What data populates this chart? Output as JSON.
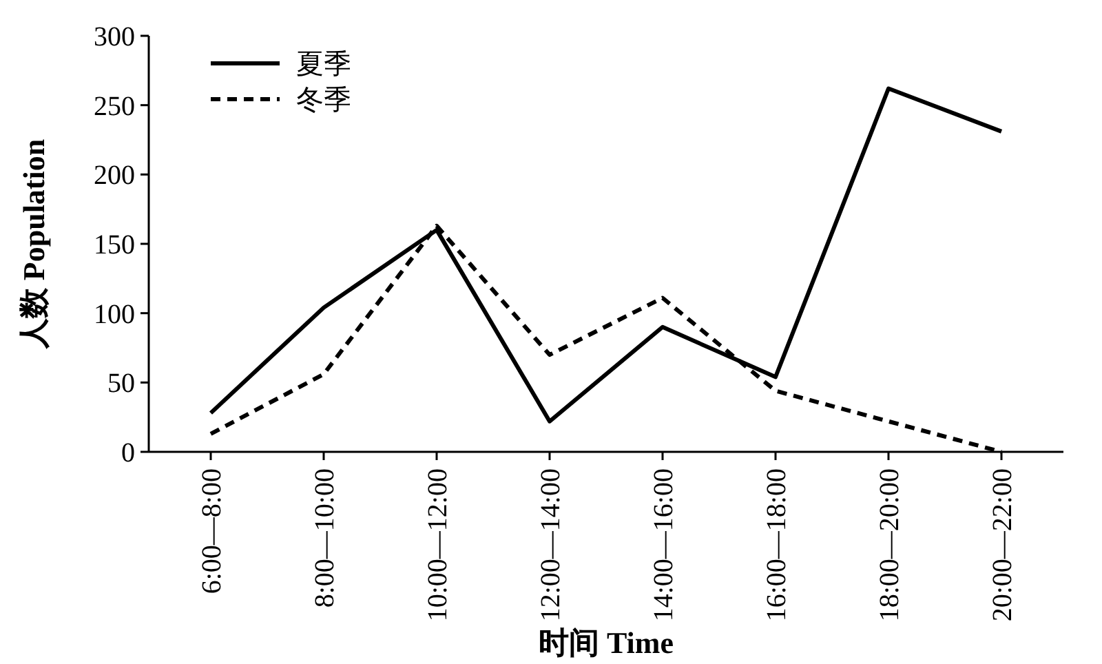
{
  "chart_data": {
    "type": "line",
    "xlabel": "时间 Time",
    "ylabel": "人数 Population",
    "categories": [
      "6:00—8:00",
      "8:00—10:00",
      "10:00—12:00",
      "12:00—14:00",
      "14:00—16:00",
      "16:00—18:00",
      "18:00—20:00",
      "20:00—22:00"
    ],
    "series": [
      {
        "name": "夏季",
        "color": "#000000",
        "line_style": "solid",
        "values": [
          28,
          104,
          160,
          22,
          90,
          54,
          262,
          231
        ]
      },
      {
        "name": "冬季",
        "color": "#000000",
        "line_style": "dashed",
        "values": [
          13,
          56,
          163,
          70,
          111,
          44,
          22,
          0
        ]
      }
    ],
    "ylim": [
      0,
      300
    ],
    "yticks": [
      0,
      50,
      100,
      150,
      200,
      250,
      300
    ],
    "legend": "top left",
    "grid": false,
    "marker": "none"
  }
}
